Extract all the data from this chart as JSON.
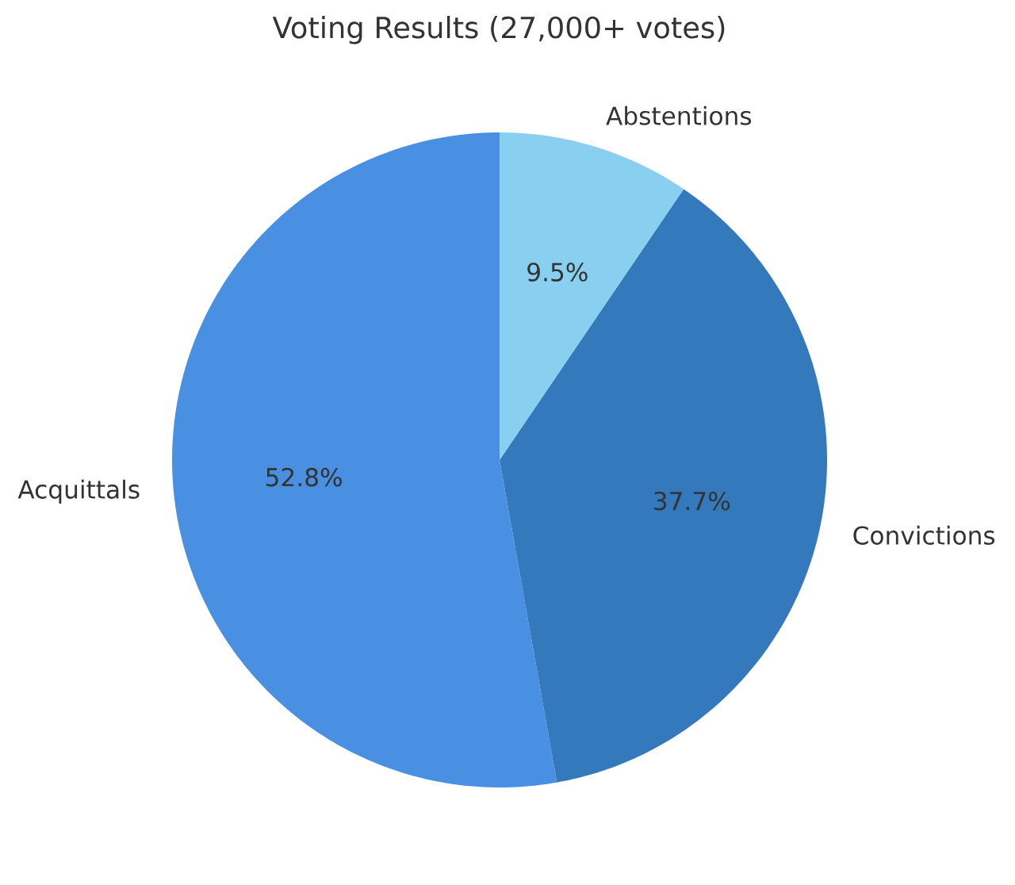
{
  "chart_data": {
    "type": "pie",
    "title": "Voting Results (27,000+ votes)",
    "categories": [
      "Acquittals",
      "Convictions",
      "Abstentions"
    ],
    "values": [
      52.8,
      37.7,
      9.5
    ],
    "value_labels": [
      "52.8%",
      "37.7%",
      "9.5%"
    ],
    "colors": [
      "#4a90e2",
      "#3579bd",
      "#89cff0"
    ]
  }
}
